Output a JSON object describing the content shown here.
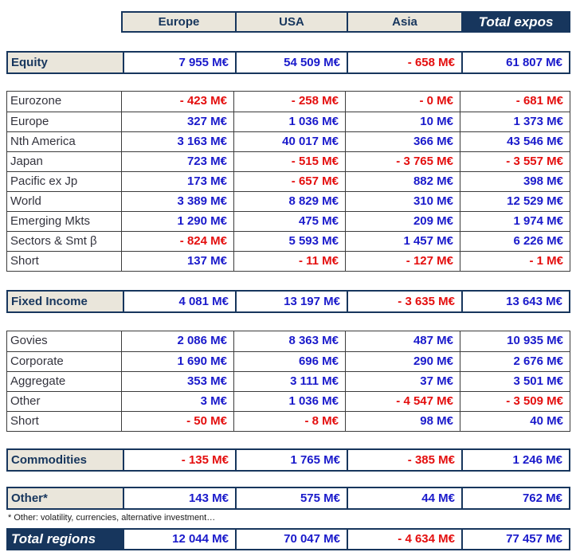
{
  "columns": [
    "Europe",
    "USA",
    "Asia",
    "Total expos"
  ],
  "equity": {
    "label": "Equity",
    "values": [
      "7 955 M€",
      "54 509 M€",
      "- 658 M€",
      "61 807 M€"
    ]
  },
  "equity_detail": [
    {
      "label": "Eurozone",
      "values": [
        "- 423 M€",
        "- 258 M€",
        "- 0 M€",
        "- 681 M€"
      ]
    },
    {
      "label": "Europe",
      "values": [
        "327 M€",
        "1 036 M€",
        "10 M€",
        "1 373 M€"
      ]
    },
    {
      "label": "Nth America",
      "values": [
        "3 163 M€",
        "40 017 M€",
        "366 M€",
        "43 546 M€"
      ]
    },
    {
      "label": "Japan",
      "values": [
        "723 M€",
        "- 515 M€",
        "- 3 765 M€",
        "- 3 557 M€"
      ]
    },
    {
      "label": "Pacific ex Jp",
      "values": [
        "173 M€",
        "- 657 M€",
        "882 M€",
        "398 M€"
      ]
    },
    {
      "label": "World",
      "values": [
        "3 389 M€",
        "8 829 M€",
        "310 M€",
        "12 529 M€"
      ]
    },
    {
      "label": "Emerging Mkts",
      "values": [
        "1 290 M€",
        "475 M€",
        "209 M€",
        "1 974 M€"
      ]
    },
    {
      "label": "Sectors & Smt β",
      "values": [
        "- 824 M€",
        "5 593 M€",
        "1 457 M€",
        "6 226 M€"
      ]
    },
    {
      "label": "Short",
      "values": [
        "137 M€",
        "- 11 M€",
        "- 127 M€",
        "- 1 M€"
      ]
    }
  ],
  "fixed_income": {
    "label": "Fixed Income",
    "values": [
      "4 081 M€",
      "13 197 M€",
      "- 3 635 M€",
      "13 643 M€"
    ]
  },
  "fixed_income_detail": [
    {
      "label": "Govies",
      "values": [
        "2 086 M€",
        "8 363 M€",
        "487 M€",
        "10 935 M€"
      ]
    },
    {
      "label": "Corporate",
      "values": [
        "1 690 M€",
        "696 M€",
        "290 M€",
        "2 676 M€"
      ]
    },
    {
      "label": "Aggregate",
      "values": [
        "353 M€",
        "3 111 M€",
        "37 M€",
        "3 501 M€"
      ]
    },
    {
      "label": "Other",
      "values": [
        "3 M€",
        "1 036 M€",
        "- 4 547 M€",
        "- 3 509 M€"
      ]
    },
    {
      "label": "Short",
      "values": [
        "- 50 M€",
        "- 8 M€",
        "98 M€",
        "40 M€"
      ]
    }
  ],
  "commodities": {
    "label": "Commodities",
    "values": [
      "- 135 M€",
      "1 765 M€",
      "- 385 M€",
      "1 246 M€"
    ]
  },
  "other": {
    "label": "Other*",
    "values": [
      "143 M€",
      "575 M€",
      "44 M€",
      "762 M€"
    ]
  },
  "footnote": "* Other: volatility, currencies, alternative investment…",
  "total_regions": {
    "label": "Total regions",
    "values": [
      "12 044 M€",
      "70 047 M€",
      "- 4 634 M€",
      "77 457 M€"
    ]
  },
  "colors": {
    "navy": "#17365D",
    "beige": "#EAE6DB",
    "positive_value": "#1A1ACB",
    "negative_value": "#E40E0E"
  }
}
